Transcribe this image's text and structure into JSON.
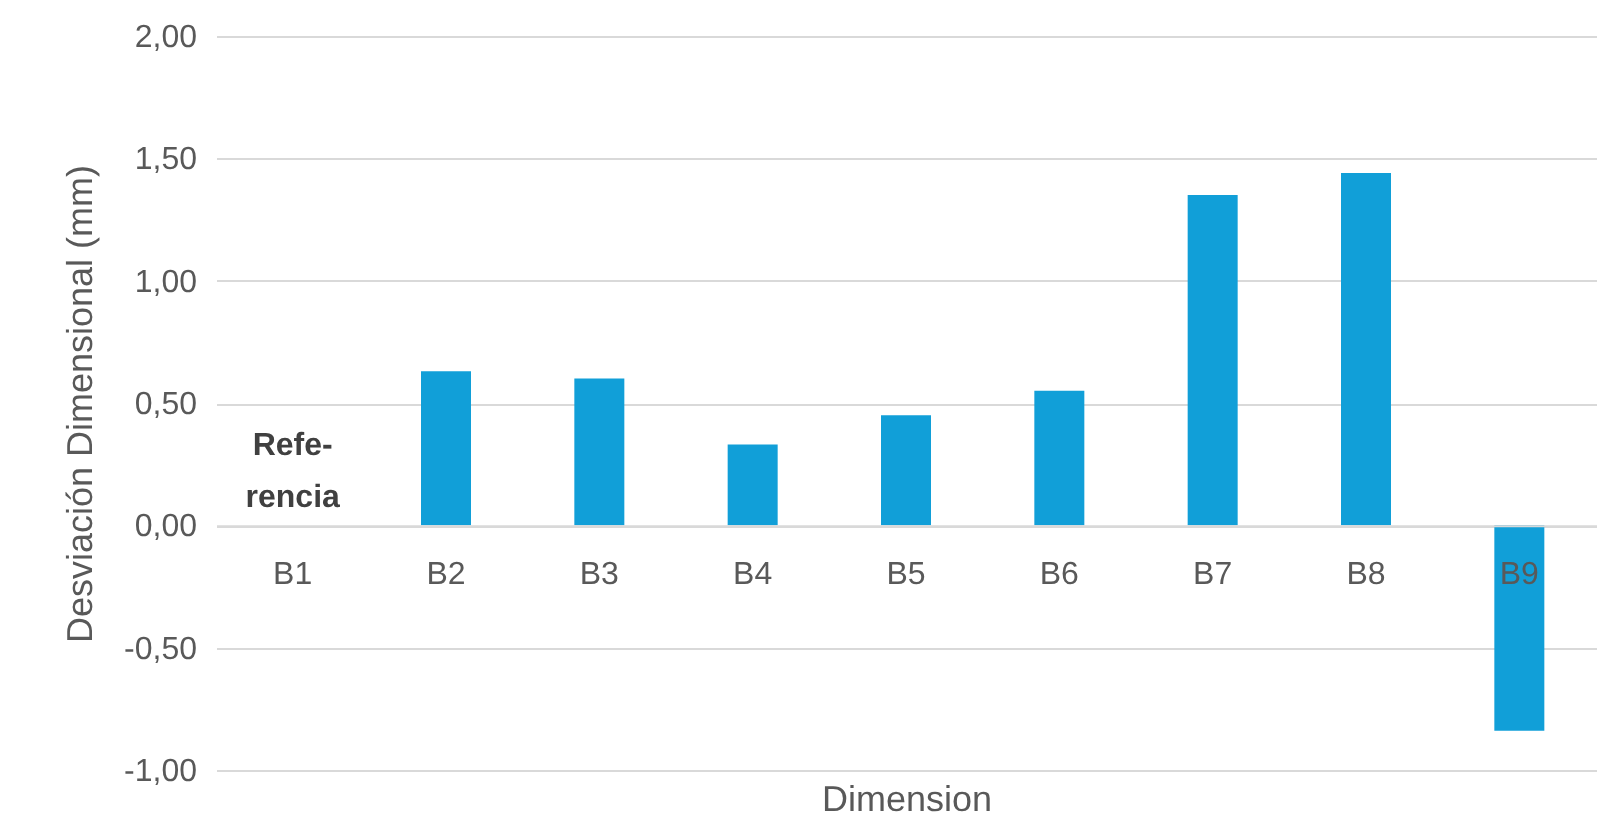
{
  "chart_data": {
    "type": "bar",
    "xlabel": "Dimension",
    "ylabel": "Desviación Dimensional (mm)",
    "categories": [
      "B1",
      "B2",
      "B3",
      "B4",
      "B5",
      "B6",
      "B7",
      "B8",
      "B9"
    ],
    "values": [
      null,
      0.63,
      0.6,
      0.33,
      0.45,
      0.55,
      1.35,
      1.44,
      -0.84
    ],
    "color": "#119fd8",
    "ylim": [
      -1,
      2
    ],
    "yticks": [
      {
        "value": -1,
        "label": "-1,00"
      },
      {
        "value": -0.5,
        "label": "-0,50"
      },
      {
        "value": 0,
        "label": "0,00"
      },
      {
        "value": 0.5,
        "label": "0,50"
      },
      {
        "value": 1,
        "label": "1,00"
      },
      {
        "value": 1.5,
        "label": "1,50"
      },
      {
        "value": 2,
        "label": "2,00"
      }
    ],
    "grid": "y",
    "annotations": [
      "Refe-\nrencia"
    ]
  }
}
